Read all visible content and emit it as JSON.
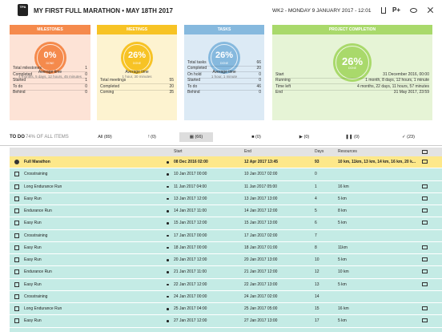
{
  "header": {
    "logo": "TPA",
    "title": "MY FIRST FULL MARATHON • MAY 18TH 2017",
    "week": "WK2 - MONDAY 9 JANUARY 2017 - 12:01",
    "action": "P+"
  },
  "cards": [
    {
      "title": "MILESTONES",
      "percent": "0%",
      "done": "DONE",
      "avg_label": "Average time",
      "avg": "4 months, 5 days, 12 hours, 45 minutes",
      "stats": [
        [
          "Total milestones",
          "1"
        ],
        [
          "Completed",
          "0"
        ],
        [
          "Started",
          "1"
        ],
        [
          "To do",
          "0"
        ],
        [
          "Behind",
          "0"
        ]
      ]
    },
    {
      "title": "MEETINGS",
      "percent": "26%",
      "done": "DONE",
      "avg_label": "Average time",
      "avg": "1 hour, 30 minutes",
      "stats": [
        [
          "Total meetings",
          "55"
        ],
        [
          "Completed",
          "20"
        ],
        [
          "Coming",
          "35"
        ]
      ]
    },
    {
      "title": "TASKS",
      "percent": "26%",
      "done": "DONE",
      "avg_label": "Average time",
      "avg": "1 hour, 1 minute",
      "stats": [
        [
          "Total tasks",
          "66"
        ],
        [
          "Completed",
          "20"
        ],
        [
          "On hold",
          "0"
        ],
        [
          "Started",
          "0"
        ],
        [
          "To do",
          "46"
        ],
        [
          "Behind",
          "0"
        ]
      ]
    },
    {
      "title": "PROJECT COMPLETION",
      "percent": "26%",
      "done": "DONE",
      "stats": [
        [
          "Start",
          "31 December 2016, 00:00"
        ],
        [
          "Running",
          "1 month, 8 days, 12 hours, 1 minute"
        ],
        [
          "Time left",
          "4 months, 22 days, 11 hours, 57 minutes"
        ],
        [
          "End",
          "31 May 2017, 23:59"
        ]
      ]
    }
  ],
  "filter": {
    "label": "TO DO",
    "summary": "74% OF ALL ITEMS",
    "tabs": [
      "All (89)",
      "! (0)",
      "▦ (66)",
      "■ (0)",
      "▶ (0)",
      "❚❚ (0)",
      "✓ (23)"
    ]
  },
  "table": {
    "columns": [
      "Start",
      "End",
      "Days",
      "Resources"
    ],
    "rows": [
      [
        "Full Marathon",
        "08 Dec 2016 02:00",
        "12 Apr 2017 13:45",
        "93",
        "10 km, 11km, 13 km, 14 km, 16 km, 20 k..."
      ],
      [
        "Crosstraining",
        "10 Jan 2017 00:00",
        "10 Jan 2017 02:00",
        "0",
        ""
      ],
      [
        "Long Endurance Run",
        "11 Jan 2017 04:00",
        "11 Jan 2017 05:00",
        "1",
        "16 km"
      ],
      [
        "Easy Run",
        "13 Jan 2017 12:00",
        "13 Jan 2017 13:00",
        "4",
        "5 km"
      ],
      [
        "Endurance Run",
        "14 Jan 2017 11:00",
        "14 Jan 2017 12:00",
        "5",
        "8 km"
      ],
      [
        "Easy Run",
        "15 Jan 2017 12:00",
        "15 Jan 2017 13:00",
        "6",
        "5 km"
      ],
      [
        "Crosstraining",
        "17 Jan 2017 00:00",
        "17 Jan 2017 02:00",
        "7",
        ""
      ],
      [
        "Easy Run",
        "18 Jan 2017 00:00",
        "18 Jan 2017 01:00",
        "8",
        "11km"
      ],
      [
        "Easy Run",
        "20 Jan 2017 12:00",
        "20 Jan 2017 13:00",
        "10",
        "5 km"
      ],
      [
        "Endurance Run",
        "21 Jan 2017 11:00",
        "21 Jan 2017 12:00",
        "12",
        "10 km"
      ],
      [
        "Easy Run",
        "22 Jan 2017 12:00",
        "22 Jan 2017 13:00",
        "13",
        "5 km"
      ],
      [
        "Crosstraining",
        "24 Jan 2017 00:00",
        "24 Jan 2017 02:00",
        "14",
        ""
      ],
      [
        "Long Endurance Run",
        "25 Jan 2017 04:00",
        "25 Jan 2017 05:00",
        "15",
        "16 km"
      ],
      [
        "Easy Run",
        "27 Jan 2017 12:00",
        "27 Jan 2017 13:00",
        "17",
        "5 km"
      ]
    ]
  }
}
